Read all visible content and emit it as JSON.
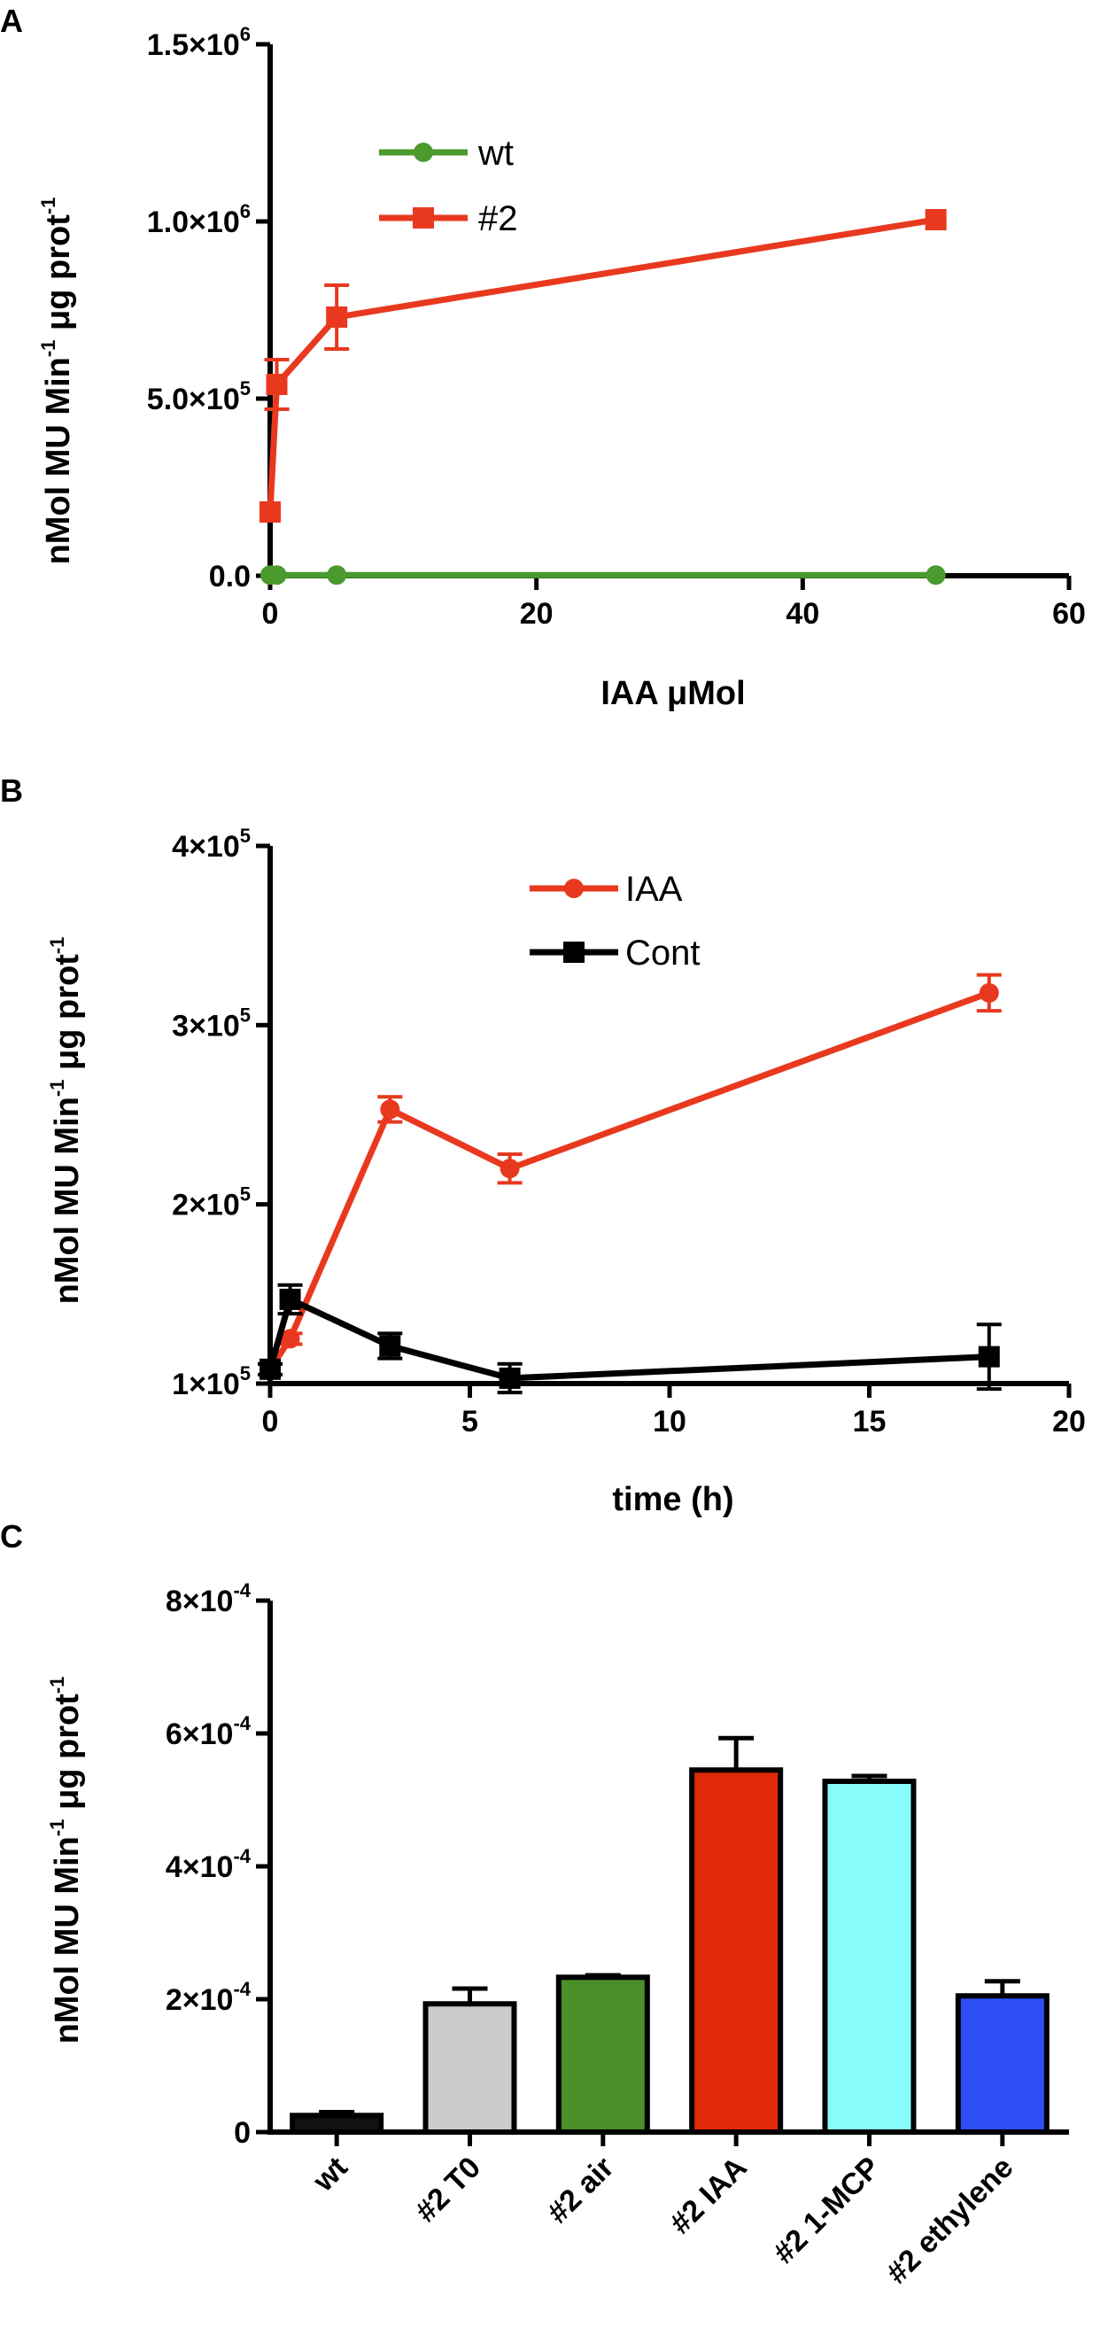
{
  "chart_data": [
    {
      "panel": "A",
      "type": "line",
      "xlabel": "IAA μMol",
      "ylabel": "nMol MU Min-1 μg prot-1",
      "xlim": [
        0,
        60
      ],
      "ylim": [
        0,
        1500000
      ],
      "xticks": [
        "0",
        "20",
        "40",
        "60"
      ],
      "yticks": [
        {
          "value": 0,
          "mant": "0.0",
          "exp": ""
        },
        {
          "value": 500000,
          "mant": "5.0×10",
          "exp": "5"
        },
        {
          "value": 1000000,
          "mant": "1.0×10",
          "exp": "6"
        },
        {
          "value": 1500000,
          "mant": "1.5×10",
          "exp": "6"
        }
      ],
      "legend_position": "top-center",
      "series": [
        {
          "name": "wt",
          "color": "#4a9a2e",
          "marker": "circle",
          "x": [
            0,
            0.5,
            5,
            50
          ],
          "y": [
            2000,
            2000,
            2000,
            2000
          ],
          "err": [
            0,
            0,
            0,
            0
          ]
        },
        {
          "name": "#2",
          "color": "#e8391f",
          "marker": "square",
          "x": [
            0,
            0.5,
            5,
            50
          ],
          "y": [
            180000,
            540000,
            730000,
            1005000
          ],
          "err": [
            0,
            70000,
            90000,
            0
          ]
        }
      ]
    },
    {
      "panel": "B",
      "type": "line",
      "xlabel": "time (h)",
      "ylabel": "nMol MU Min-1 μg prot-1",
      "xlim": [
        0,
        20
      ],
      "ylim": [
        100000,
        400000
      ],
      "xticks": [
        "0",
        "5",
        "10",
        "15",
        "20"
      ],
      "yticks": [
        {
          "value": 100000,
          "mant": "1×10",
          "exp": "5"
        },
        {
          "value": 200000,
          "mant": "2×10",
          "exp": "5"
        },
        {
          "value": 300000,
          "mant": "3×10",
          "exp": "5"
        },
        {
          "value": 400000,
          "mant": "4×10",
          "exp": "5"
        }
      ],
      "legend_position": "top-center",
      "series": [
        {
          "name": "IAA",
          "color": "#e8391f",
          "marker": "circle",
          "x": [
            0,
            0.5,
            3,
            6,
            18
          ],
          "y": [
            108000,
            125000,
            253000,
            220000,
            318000
          ],
          "err": [
            3000,
            3000,
            7000,
            8000,
            10000
          ]
        },
        {
          "name": "Cont",
          "color": "#000000",
          "marker": "square",
          "x": [
            0,
            0.5,
            3,
            6,
            18
          ],
          "y": [
            108000,
            147000,
            121000,
            103000,
            115000
          ],
          "err": [
            3000,
            8000,
            7000,
            8000,
            18000
          ]
        }
      ]
    },
    {
      "panel": "C",
      "type": "bar",
      "xlabel": "",
      "ylabel": "nMol MU Min-1 μg prot-1",
      "ylim": [
        0,
        0.0008
      ],
      "yticks": [
        {
          "value": 0,
          "mant": "0",
          "exp": ""
        },
        {
          "value": 0.0002,
          "mant": "2×10",
          "exp": "-4"
        },
        {
          "value": 0.0004,
          "mant": "4×10",
          "exp": "-4"
        },
        {
          "value": 0.0006,
          "mant": "6×10",
          "exp": "-4"
        },
        {
          "value": 0.0008,
          "mant": "8×10",
          "exp": "-4"
        }
      ],
      "categories": [
        "wt",
        "#2 T0",
        "#2 air",
        "#2 IAA",
        "#2 1-MCP",
        "#2 ethylene"
      ],
      "values": [
        2.5e-05,
        0.000193,
        0.000233,
        0.000545,
        0.000528,
        0.000205
      ],
      "errors": [
        5e-06,
        2.3e-05,
        3e-06,
        4.8e-05,
        8e-06,
        2.2e-05
      ],
      "colors": [
        "#111111",
        "#cccccc",
        "#4a8f2a",
        "#e02a0a",
        "#88fbfb",
        "#2f4ef5"
      ]
    }
  ],
  "panels": {
    "a": {
      "letter": "A"
    },
    "b": {
      "letter": "B"
    },
    "c": {
      "letter": "C"
    }
  },
  "ylabel_parts": {
    "main": "nMol MU Min",
    "sup1": "-1",
    "mid": " μg prot",
    "sup2": "-1"
  }
}
